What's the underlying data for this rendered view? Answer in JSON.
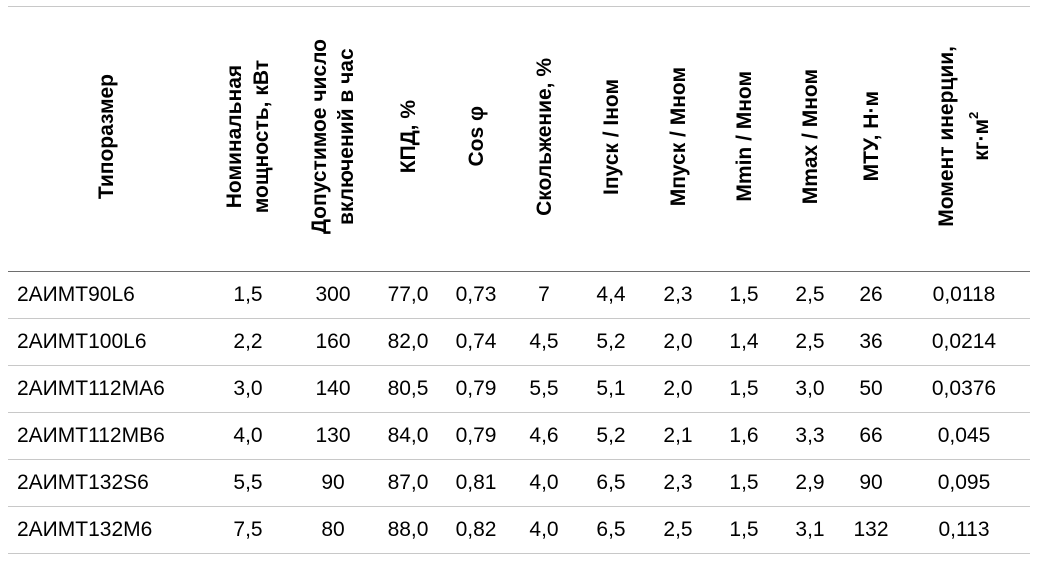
{
  "headers": [
    {
      "lines": [
        "Типоразмер"
      ]
    },
    {
      "lines": [
        "Номинальная",
        "мощность, кВт"
      ]
    },
    {
      "lines": [
        "Допустимое число",
        "включений в час"
      ]
    },
    {
      "lines": [
        "КПД, %"
      ]
    },
    {
      "lines": [
        "Cos φ"
      ]
    },
    {
      "lines": [
        "Скольжение, %"
      ]
    },
    {
      "lines": [
        "Iпуск / Iном"
      ]
    },
    {
      "lines": [
        "Мпуск / Мном"
      ]
    },
    {
      "lines": [
        "Mmin / Мном"
      ]
    },
    {
      "lines": [
        "Mmax / Мном"
      ]
    },
    {
      "lines": [
        "МТУ, Н·м"
      ]
    },
    {
      "lines": [
        "Момент инерции,",
        "кг·м"
      ],
      "sup": "2"
    }
  ],
  "rows": [
    [
      "2АИМТ90L6",
      "1,5",
      "300",
      "77,0",
      "0,73",
      "7",
      "4,4",
      "2,3",
      "1,5",
      "2,5",
      "26",
      "0,0118"
    ],
    [
      "2АИМТ100L6",
      "2,2",
      "160",
      "82,0",
      "0,74",
      "4,5",
      "5,2",
      "2,0",
      "1,4",
      "2,5",
      "36",
      "0,0214"
    ],
    [
      "2АИМТ112МА6",
      "3,0",
      "140",
      "80,5",
      "0,79",
      "5,5",
      "5,1",
      "2,0",
      "1,5",
      "3,0",
      "50",
      "0,0376"
    ],
    [
      "2АИМТ112МВ6",
      "4,0",
      "130",
      "84,0",
      "0,79",
      "4,6",
      "5,2",
      "2,1",
      "1,6",
      "3,3",
      "66",
      "0,045"
    ],
    [
      "2АИМТ132S6",
      "5,5",
      "90",
      "87,0",
      "0,81",
      "4,0",
      "6,5",
      "2,3",
      "1,5",
      "2,9",
      "90",
      "0,095"
    ],
    [
      "2АИМТ132М6",
      "7,5",
      "80",
      "88,0",
      "0,82",
      "4,0",
      "6,5",
      "2,5",
      "1,5",
      "3,1",
      "132",
      "0,113"
    ]
  ]
}
